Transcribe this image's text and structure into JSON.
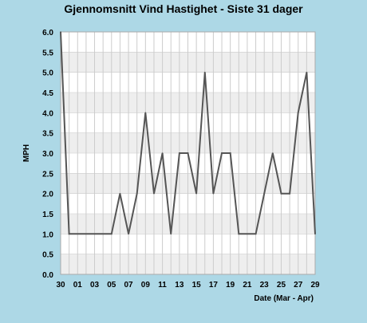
{
  "chart_data": {
    "type": "line",
    "title": "Gjennomsnitt Vind Hastighet - Siste 31 dager",
    "xlabel": "Date (Mar - Apr)",
    "ylabel": "MPH",
    "ylim": [
      0,
      6
    ],
    "yticks": [
      "0.0",
      "0.5",
      "1.0",
      "1.5",
      "2.0",
      "2.5",
      "3.0",
      "3.5",
      "4.0",
      "4.5",
      "5.0",
      "5.5",
      "6.0"
    ],
    "x": [
      "30",
      "31",
      "01",
      "02",
      "03",
      "04",
      "05",
      "06",
      "07",
      "08",
      "09",
      "10",
      "11",
      "12",
      "13",
      "14",
      "15",
      "16",
      "17",
      "18",
      "19",
      "20",
      "21",
      "22",
      "23",
      "24",
      "25",
      "26",
      "27",
      "28",
      "29"
    ],
    "xtick_labels": [
      "30",
      "01",
      "03",
      "05",
      "07",
      "09",
      "11",
      "13",
      "15",
      "17",
      "19",
      "21",
      "23",
      "25",
      "27",
      "29"
    ],
    "series": [
      {
        "values": [
          6.0,
          1.0,
          1.0,
          1.0,
          1.0,
          1.0,
          1.0,
          2.0,
          1.0,
          2.0,
          4.0,
          2.0,
          3.0,
          1.0,
          3.0,
          3.0,
          2.0,
          5.0,
          2.0,
          3.0,
          3.0,
          1.0,
          1.0,
          1.0,
          2.0,
          3.0,
          2.0,
          2.0,
          4.0,
          5.0,
          1.0
        ]
      }
    ],
    "grid": true,
    "colors": {
      "background": "#ADD8E6",
      "plot_band_light": "#FFFFFF",
      "plot_band_dark": "#EEEEEE",
      "line": "#555555",
      "grid": "#CCCCCC"
    }
  }
}
